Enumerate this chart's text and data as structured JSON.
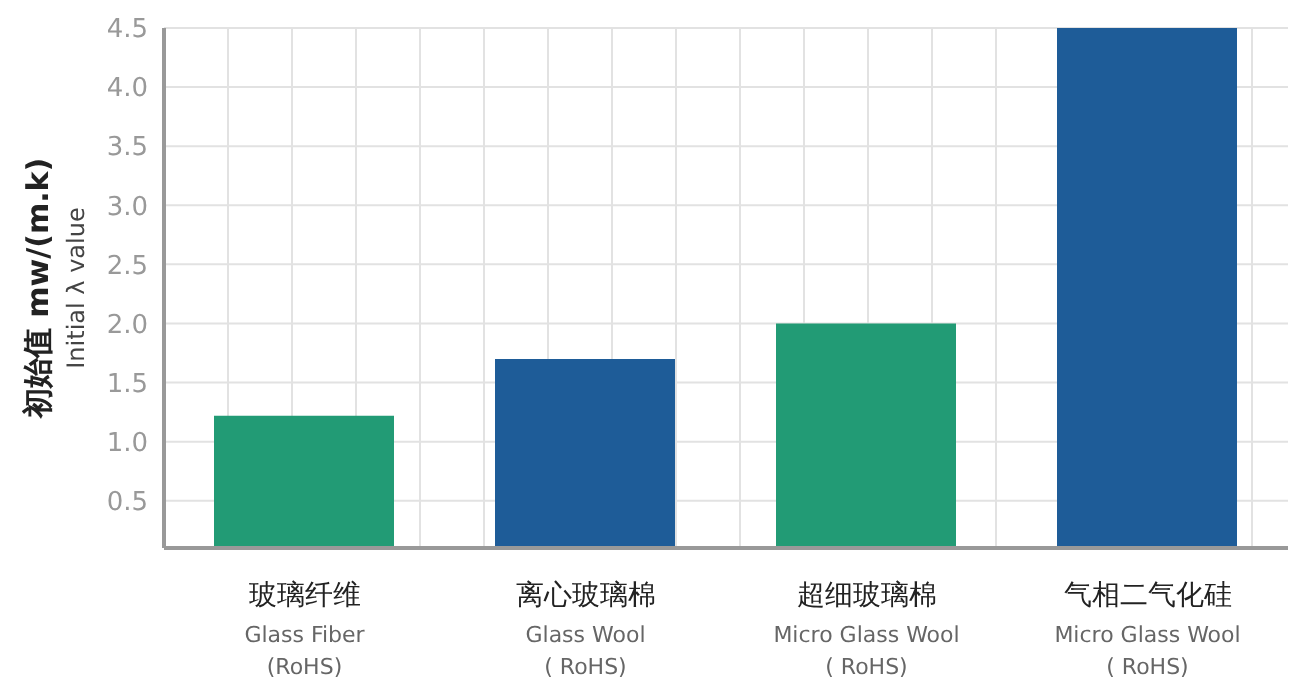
{
  "chart_data": {
    "type": "bar",
    "ylabel": "初始值 mw/(m.k)\nInitial λ value",
    "categories": [
      "玻璃纤维\nGlass Fiber\n(RoHS)",
      "离心玻璃棉\nGlass Wool\n( RoHS)",
      "超细玻璃棉\nMicro Glass Wool\n( RoHS)",
      "气相二气化硅\nMicro Glass Wool\n( RoHS)"
    ],
    "values": [
      1.22,
      1.7,
      2.0,
      4.5
    ],
    "colors": [
      "#229b75",
      "#1e5c98",
      "#229b75",
      "#1e5c98"
    ],
    "ylim": [
      0.1,
      4.5
    ],
    "yticks": [
      0.5,
      {
        "value": 1,
        "label": "1.0"
      },
      1.5,
      {
        "value": 2,
        "label": "2.0"
      },
      2.5,
      {
        "value": 3,
        "label": "3.0"
      },
      3.5,
      {
        "value": 4,
        "label": "4.0"
      },
      4.5
    ],
    "grid": true
  }
}
